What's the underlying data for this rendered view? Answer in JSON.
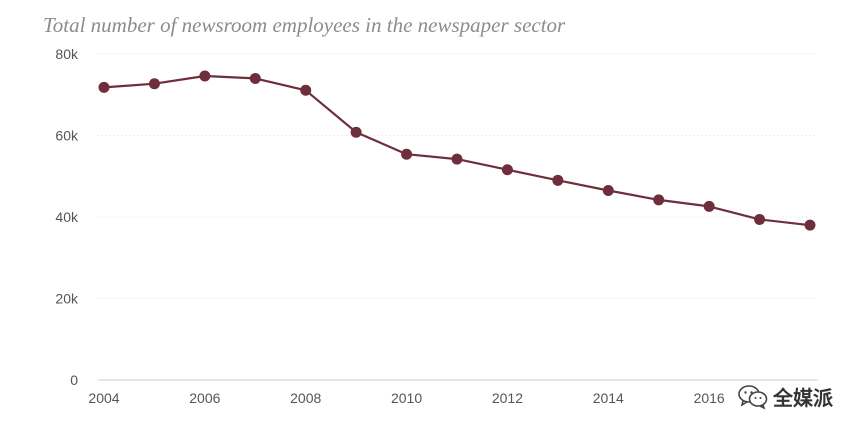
{
  "chart_data": {
    "type": "line",
    "title": "Total number of newsroom employees in the newspaper sector",
    "xlabel": "",
    "ylabel": "",
    "x": [
      2004,
      2005,
      2006,
      2007,
      2008,
      2009,
      2010,
      2011,
      2012,
      2013,
      2014,
      2015,
      2016,
      2017,
      2018
    ],
    "series": [
      {
        "name": "Newsroom employees",
        "values": [
          71800,
          72700,
          74600,
          74000,
          71100,
          60800,
          55400,
          54200,
          51600,
          49000,
          46500,
          44200,
          42600,
          39400,
          38000
        ]
      }
    ],
    "ylim": [
      0,
      80000
    ],
    "xlim": [
      2004,
      2018
    ],
    "yticks": [
      0,
      20000,
      40000,
      60000,
      80000
    ],
    "ytick_labels": [
      "0",
      "20k",
      "40k",
      "60k",
      "80k"
    ],
    "xticks": [
      2004,
      2006,
      2008,
      2010,
      2012,
      2014,
      2016
    ],
    "xtick_labels": [
      "2004",
      "2006",
      "2008",
      "2010",
      "2012",
      "2014",
      "2016"
    ],
    "grid": true,
    "colors": {
      "line": "#6e2e3c",
      "marker": "#6e2e3c",
      "grid": "#e2e2e2",
      "axis": "#cccccc"
    }
  },
  "watermark": {
    "text": "全媒派",
    "icon": "wechat-icon"
  }
}
